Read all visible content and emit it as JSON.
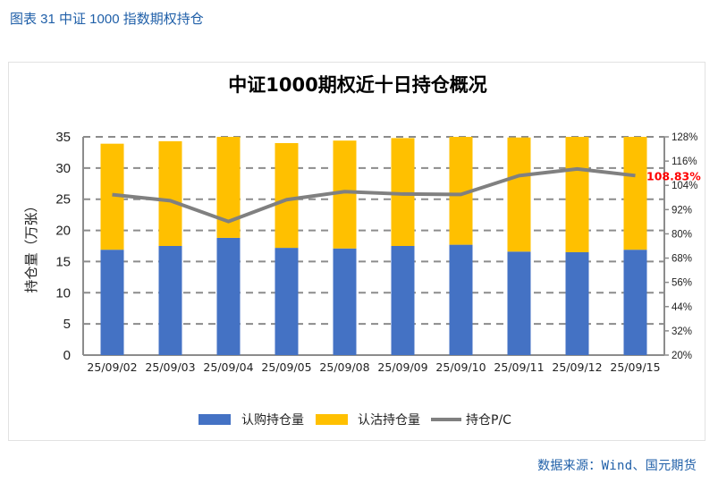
{
  "caption": "图表 31  中证 1000 指数期权持仓",
  "source": "数据来源：Wind、国元期货",
  "colors": {
    "call": "#4472c4",
    "put": "#ffc000",
    "pc_line": "#808080",
    "annotation": "#ff0000",
    "caption": "#1f5fa8"
  },
  "chart_data": {
    "type": "bar",
    "stacked": true,
    "title": "中证1000期权近十日持仓概况",
    "xlabel": "",
    "ylabel": "持仓量（万张）",
    "categories": [
      "25/09/02",
      "25/09/03",
      "25/09/04",
      "25/09/05",
      "25/09/08",
      "25/09/09",
      "25/09/10",
      "25/09/11",
      "25/09/12",
      "25/09/15"
    ],
    "series": [
      {
        "name": "认购持仓量",
        "type": "bar",
        "axis": "left",
        "color": "#4472c4",
        "values": [
          16.9,
          17.5,
          18.8,
          17.2,
          17.1,
          17.5,
          17.7,
          16.6,
          16.5,
          16.9
        ]
      },
      {
        "name": "认沽持仓量",
        "type": "bar",
        "axis": "left",
        "color": "#ffc000",
        "values": [
          17.0,
          16.8,
          16.2,
          16.8,
          17.3,
          17.3,
          17.3,
          18.3,
          18.5,
          18.1
        ]
      },
      {
        "name": "持仓P/C",
        "type": "line",
        "axis": "right",
        "color": "#808080",
        "values": [
          99.4,
          96.4,
          86.1,
          96.9,
          100.9,
          99.7,
          99.5,
          108.8,
          112.1,
          108.83
        ]
      }
    ],
    "ylim": [
      0,
      35
    ],
    "yticks": [
      "0",
      "5",
      "10",
      "15",
      "20",
      "25",
      "30",
      "35"
    ],
    "y2lim": [
      20,
      128
    ],
    "y2ticks": [
      "20%",
      "32%",
      "44%",
      "56%",
      "68%",
      "80%",
      "92%",
      "104%",
      "116%",
      "128%"
    ],
    "grid": "horizontal dashed",
    "legend": {
      "placement": "bottom",
      "entries": [
        "认购持仓量",
        "认沽持仓量",
        "持仓P/C"
      ]
    },
    "annotations": [
      {
        "text": "108.83%",
        "series": "持仓P/C",
        "category": "25/09/15"
      }
    ]
  }
}
